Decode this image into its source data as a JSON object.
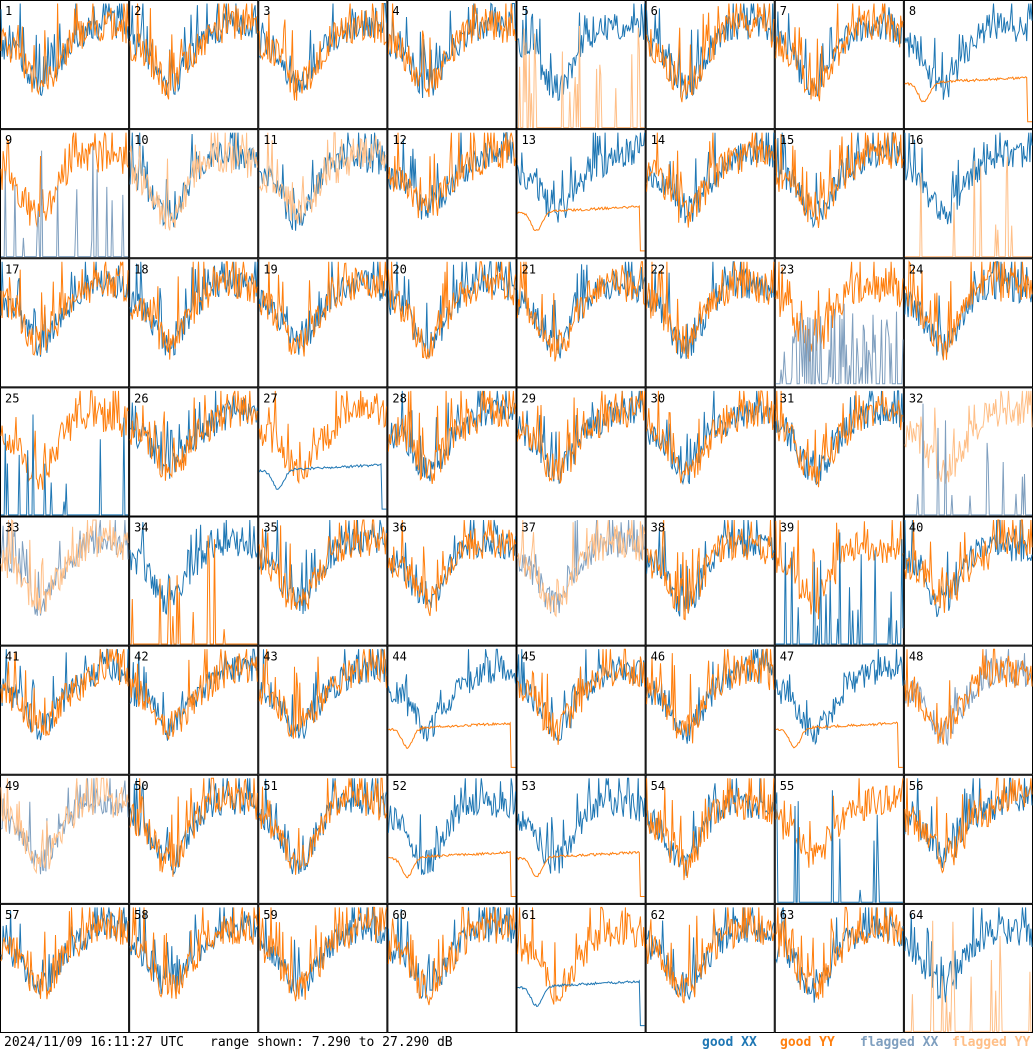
{
  "chart_data": {
    "type": "line",
    "title": "",
    "range_db": [
      7.29,
      27.29
    ],
    "legend_position": "bottom-right",
    "legend": [
      {
        "key": "good_xx",
        "label": "good XX",
        "color": "#1f77b4"
      },
      {
        "key": "good_yy",
        "label": "good YY",
        "color": "#ff7f0e"
      },
      {
        "key": "flagged_xx",
        "label": "flagged XX",
        "color": "#7f9fbf"
      },
      {
        "key": "flagged_yy",
        "label": "flagged YY",
        "color": "#ffbf87"
      }
    ],
    "tiles": [
      {
        "id": "1",
        "xx": "good",
        "yy": "good",
        "pattern": "normal"
      },
      {
        "id": "2",
        "xx": "good",
        "yy": "good",
        "pattern": "normal"
      },
      {
        "id": "3",
        "xx": "good",
        "yy": "good",
        "pattern": "normal"
      },
      {
        "id": "4",
        "xx": "good",
        "yy": "good",
        "pattern": "normal"
      },
      {
        "id": "5",
        "xx": "good",
        "yy": "flagged",
        "pattern": "yy-spikes"
      },
      {
        "id": "6",
        "xx": "good",
        "yy": "good",
        "pattern": "normal"
      },
      {
        "id": "7",
        "xx": "good",
        "yy": "good",
        "pattern": "normal"
      },
      {
        "id": "8",
        "xx": "good",
        "yy": "good",
        "pattern": "yy-flat"
      },
      {
        "id": "9",
        "xx": "flagged",
        "yy": "good",
        "pattern": "xx-spikes"
      },
      {
        "id": "10",
        "xx": "good",
        "yy": "flagged",
        "pattern": "normal"
      },
      {
        "id": "11",
        "xx": "good",
        "yy": "flagged",
        "pattern": "normal"
      },
      {
        "id": "12",
        "xx": "good",
        "yy": "good",
        "pattern": "normal"
      },
      {
        "id": "13",
        "xx": "good",
        "yy": "good",
        "pattern": "yy-flat"
      },
      {
        "id": "14",
        "xx": "good",
        "yy": "good",
        "pattern": "normal"
      },
      {
        "id": "15",
        "xx": "good",
        "yy": "good",
        "pattern": "normal"
      },
      {
        "id": "16",
        "xx": "good",
        "yy": "flagged",
        "pattern": "yy-spikes"
      },
      {
        "id": "17",
        "xx": "good",
        "yy": "good",
        "pattern": "normal"
      },
      {
        "id": "18",
        "xx": "good",
        "yy": "good",
        "pattern": "normal"
      },
      {
        "id": "19",
        "xx": "good",
        "yy": "good",
        "pattern": "normal"
      },
      {
        "id": "20",
        "xx": "good",
        "yy": "good",
        "pattern": "normal"
      },
      {
        "id": "21",
        "xx": "good",
        "yy": "good",
        "pattern": "normal"
      },
      {
        "id": "22",
        "xx": "good",
        "yy": "good",
        "pattern": "normal"
      },
      {
        "id": "23",
        "xx": "flagged",
        "yy": "good",
        "pattern": "xx-drop"
      },
      {
        "id": "24",
        "xx": "good",
        "yy": "good",
        "pattern": "normal"
      },
      {
        "id": "25",
        "xx": "good",
        "yy": "good",
        "pattern": "xx-spikes"
      },
      {
        "id": "26",
        "xx": "good",
        "yy": "good",
        "pattern": "normal"
      },
      {
        "id": "27",
        "xx": "good",
        "yy": "good",
        "pattern": "xx-flat"
      },
      {
        "id": "28",
        "xx": "good",
        "yy": "good",
        "pattern": "normal"
      },
      {
        "id": "29",
        "xx": "good",
        "yy": "good",
        "pattern": "normal"
      },
      {
        "id": "30",
        "xx": "good",
        "yy": "good",
        "pattern": "normal"
      },
      {
        "id": "31",
        "xx": "good",
        "yy": "good",
        "pattern": "normal"
      },
      {
        "id": "32",
        "xx": "flagged",
        "yy": "flagged",
        "pattern": "xx-spikes"
      },
      {
        "id": "33",
        "xx": "flagged",
        "yy": "flagged",
        "pattern": "normal"
      },
      {
        "id": "34",
        "xx": "good",
        "yy": "good",
        "pattern": "yy-spikes"
      },
      {
        "id": "35",
        "xx": "good",
        "yy": "good",
        "pattern": "normal"
      },
      {
        "id": "36",
        "xx": "good",
        "yy": "good",
        "pattern": "normal"
      },
      {
        "id": "37",
        "xx": "flagged",
        "yy": "flagged",
        "pattern": "normal"
      },
      {
        "id": "38",
        "xx": "good",
        "yy": "good",
        "pattern": "normal"
      },
      {
        "id": "39",
        "xx": "good",
        "yy": "good",
        "pattern": "xx-spikes"
      },
      {
        "id": "40",
        "xx": "good",
        "yy": "good",
        "pattern": "normal"
      },
      {
        "id": "41",
        "xx": "good",
        "yy": "good",
        "pattern": "normal"
      },
      {
        "id": "42",
        "xx": "good",
        "yy": "good",
        "pattern": "normal"
      },
      {
        "id": "43",
        "xx": "good",
        "yy": "good",
        "pattern": "normal"
      },
      {
        "id": "44",
        "xx": "good",
        "yy": "good",
        "pattern": "yy-flat"
      },
      {
        "id": "45",
        "xx": "good",
        "yy": "good",
        "pattern": "normal"
      },
      {
        "id": "46",
        "xx": "good",
        "yy": "good",
        "pattern": "normal"
      },
      {
        "id": "47",
        "xx": "good",
        "yy": "good",
        "pattern": "yy-flat"
      },
      {
        "id": "48",
        "xx": "flagged",
        "yy": "good",
        "pattern": "normal"
      },
      {
        "id": "49",
        "xx": "flagged",
        "yy": "flagged",
        "pattern": "normal"
      },
      {
        "id": "50",
        "xx": "good",
        "yy": "good",
        "pattern": "normal"
      },
      {
        "id": "51",
        "xx": "good",
        "yy": "good",
        "pattern": "normal"
      },
      {
        "id": "52",
        "xx": "good",
        "yy": "good",
        "pattern": "yy-flat"
      },
      {
        "id": "53",
        "xx": "good",
        "yy": "good",
        "pattern": "yy-flat"
      },
      {
        "id": "54",
        "xx": "good",
        "yy": "good",
        "pattern": "normal"
      },
      {
        "id": "55",
        "xx": "good",
        "yy": "good",
        "pattern": "xx-spikes"
      },
      {
        "id": "56",
        "xx": "good",
        "yy": "good",
        "pattern": "normal"
      },
      {
        "id": "57",
        "xx": "good",
        "yy": "good",
        "pattern": "normal"
      },
      {
        "id": "58",
        "xx": "good",
        "yy": "good",
        "pattern": "normal"
      },
      {
        "id": "59",
        "xx": "good",
        "yy": "good",
        "pattern": "normal"
      },
      {
        "id": "60",
        "xx": "good",
        "yy": "good",
        "pattern": "normal"
      },
      {
        "id": "61",
        "xx": "good",
        "yy": "good",
        "pattern": "xx-flat"
      },
      {
        "id": "62",
        "xx": "good",
        "yy": "good",
        "pattern": "normal"
      },
      {
        "id": "63",
        "xx": "good",
        "yy": "good",
        "pattern": "normal"
      },
      {
        "id": "64",
        "xx": "good",
        "yy": "flagged",
        "pattern": "yy-spikes"
      }
    ]
  },
  "footer": {
    "timestamp": "2024/11/09 16:11:27 UTC",
    "range_text": "range shown: 7.290 to 27.290 dB"
  }
}
